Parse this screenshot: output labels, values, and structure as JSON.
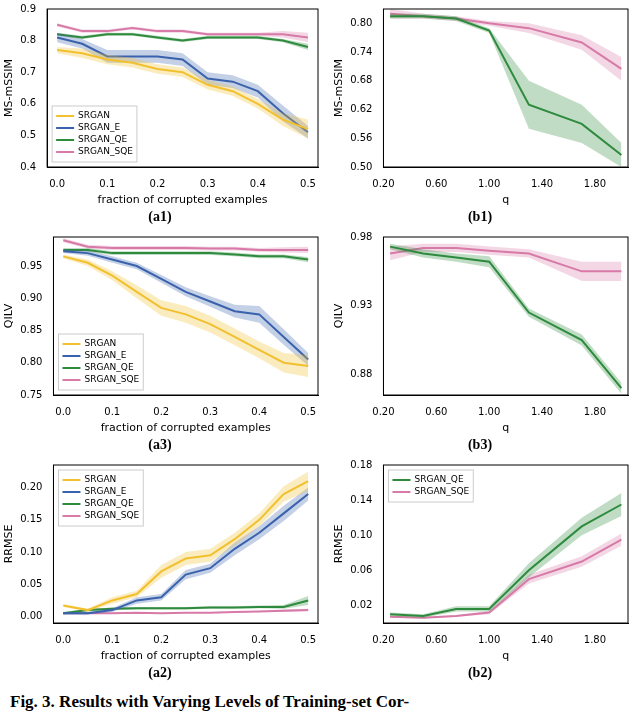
{
  "caption": "Fig. 3.  Results with Varying Levels of Training-set Cor-",
  "chart_data": [
    {
      "type": "line",
      "title": "(a1)",
      "x_label": "fraction of corrupted examples",
      "y_label": "MS-mSSIM",
      "x": [
        0,
        0.05,
        0.1,
        0.15,
        0.2,
        0.25,
        0.3,
        0.35,
        0.4,
        0.45,
        0.5
      ],
      "xlim": [
        -0.02,
        0.52
      ],
      "xticks": [
        {
          "value": 0,
          "label": "0.0"
        },
        0.1,
        0.2,
        0.3,
        0.4,
        0.5
      ],
      "ylim": [
        0.4,
        0.9
      ],
      "yticks": [
        0.4,
        0.5,
        0.6,
        0.7,
        0.8,
        0.9
      ],
      "grid": false,
      "legend": "lower left",
      "series": [
        {
          "name": "SRGAN",
          "color": "#f2c12e",
          "values": [
            0.77,
            0.76,
            0.74,
            0.73,
            0.71,
            0.7,
            0.66,
            0.64,
            0.6,
            0.55,
            0.52
          ],
          "lower": [
            0.76,
            0.745,
            0.725,
            0.715,
            0.695,
            0.685,
            0.645,
            0.625,
            0.585,
            0.53,
            0.49
          ],
          "upper": [
            0.78,
            0.775,
            0.755,
            0.745,
            0.725,
            0.715,
            0.675,
            0.655,
            0.615,
            0.57,
            0.55
          ]
        },
        {
          "name": "SRGAN_E",
          "color": "#3a62ad",
          "values": [
            0.81,
            0.79,
            0.75,
            0.75,
            0.75,
            0.74,
            0.68,
            0.67,
            0.64,
            0.57,
            0.51
          ],
          "lower": [
            0.795,
            0.775,
            0.73,
            0.73,
            0.73,
            0.72,
            0.66,
            0.65,
            0.62,
            0.545,
            0.49
          ],
          "upper": [
            0.825,
            0.805,
            0.77,
            0.77,
            0.77,
            0.76,
            0.7,
            0.69,
            0.66,
            0.595,
            0.53
          ]
        },
        {
          "name": "SRGAN_QE",
          "color": "#2e8b3e",
          "values": [
            0.82,
            0.81,
            0.82,
            0.82,
            0.81,
            0.8,
            0.81,
            0.81,
            0.81,
            0.8,
            0.78
          ],
          "lower": [
            0.815,
            0.805,
            0.815,
            0.815,
            0.805,
            0.795,
            0.805,
            0.805,
            0.805,
            0.795,
            0.77
          ],
          "upper": [
            0.825,
            0.815,
            0.825,
            0.825,
            0.815,
            0.805,
            0.815,
            0.815,
            0.815,
            0.805,
            0.79
          ]
        },
        {
          "name": "SRGAN_SQE",
          "color": "#d87aa8",
          "values": [
            0.85,
            0.83,
            0.83,
            0.84,
            0.83,
            0.83,
            0.82,
            0.82,
            0.82,
            0.82,
            0.81
          ],
          "lower": [
            0.845,
            0.825,
            0.825,
            0.835,
            0.825,
            0.825,
            0.815,
            0.815,
            0.815,
            0.81,
            0.795
          ],
          "upper": [
            0.855,
            0.835,
            0.835,
            0.845,
            0.835,
            0.835,
            0.825,
            0.825,
            0.825,
            0.83,
            0.825
          ]
        }
      ]
    },
    {
      "type": "line",
      "title": "(b1)",
      "x_label": "q",
      "y_label": "MS-mSSIM",
      "x": [
        0.25,
        0.5,
        0.75,
        1.0,
        1.3,
        1.7,
        2.0
      ],
      "xlim": [
        0.2,
        2.05
      ],
      "xticks": [
        {
          "value": 0.2,
          "label": "0.20"
        },
        {
          "value": 0.6,
          "label": "0.60"
        },
        {
          "value": 1.0,
          "label": "1.00"
        },
        {
          "value": 1.4,
          "label": "1.40"
        },
        {
          "value": 1.8,
          "label": "1.80"
        }
      ],
      "ylim": [
        0.5,
        0.83
      ],
      "yticks": [
        {
          "value": 0.5,
          "label": "0.50"
        },
        0.56,
        0.62,
        0.68,
        0.74,
        {
          "value": 0.8,
          "label": "0.80"
        }
      ],
      "grid": false,
      "series": [
        {
          "name": "SRGAN_QE",
          "color": "#2e8b3e",
          "values": [
            0.815,
            0.815,
            0.81,
            0.785,
            0.63,
            0.59,
            0.525
          ],
          "lower": [
            0.81,
            0.81,
            0.805,
            0.78,
            0.58,
            0.55,
            0.5
          ],
          "upper": [
            0.82,
            0.82,
            0.815,
            0.79,
            0.68,
            0.63,
            0.55
          ]
        },
        {
          "name": "SRGAN_SQE",
          "color": "#d87aa8",
          "values": [
            0.82,
            0.815,
            0.81,
            0.8,
            0.79,
            0.76,
            0.705
          ],
          "lower": [
            0.81,
            0.81,
            0.805,
            0.795,
            0.78,
            0.745,
            0.68
          ],
          "upper": [
            0.83,
            0.82,
            0.815,
            0.805,
            0.8,
            0.775,
            0.73
          ]
        }
      ]
    },
    {
      "type": "line",
      "title": "(a3)",
      "x_label": "fraction of corrupted examples",
      "y_label": "QILV",
      "x": [
        0,
        0.05,
        0.1,
        0.15,
        0.2,
        0.25,
        0.3,
        0.35,
        0.4,
        0.45,
        0.5
      ],
      "xlim": [
        -0.02,
        0.52
      ],
      "xticks": [
        {
          "value": 0,
          "label": "0.0"
        },
        0.1,
        0.2,
        0.3,
        0.4,
        0.5
      ],
      "ylim": [
        0.75,
        0.995
      ],
      "yticks": [
        0.75,
        {
          "value": 0.8,
          "label": "0.80"
        },
        0.85,
        {
          "value": 0.9,
          "label": "0.90"
        },
        0.95
      ],
      "grid": false,
      "legend": "lower left",
      "series": [
        {
          "name": "SRGAN",
          "color": "#f2c12e",
          "values": [
            0.965,
            0.955,
            0.935,
            0.91,
            0.885,
            0.875,
            0.86,
            0.84,
            0.82,
            0.8,
            0.795
          ],
          "lower": [
            0.962,
            0.95,
            0.928,
            0.9,
            0.873,
            0.862,
            0.847,
            0.827,
            0.807,
            0.785,
            0.778
          ],
          "upper": [
            0.968,
            0.96,
            0.942,
            0.92,
            0.897,
            0.888,
            0.873,
            0.853,
            0.833,
            0.815,
            0.812
          ]
        },
        {
          "name": "SRGAN_E",
          "color": "#3a62ad",
          "values": [
            0.973,
            0.97,
            0.96,
            0.95,
            0.93,
            0.91,
            0.895,
            0.88,
            0.875,
            0.84,
            0.805
          ],
          "lower": [
            0.97,
            0.966,
            0.955,
            0.945,
            0.924,
            0.903,
            0.887,
            0.87,
            0.862,
            0.828,
            0.795
          ],
          "upper": [
            0.976,
            0.974,
            0.965,
            0.955,
            0.936,
            0.917,
            0.903,
            0.89,
            0.888,
            0.852,
            0.815
          ]
        },
        {
          "name": "SRGAN_QE",
          "color": "#2e8b3e",
          "values": [
            0.975,
            0.975,
            0.97,
            0.97,
            0.97,
            0.97,
            0.97,
            0.968,
            0.965,
            0.965,
            0.96
          ],
          "lower": [
            0.972,
            0.972,
            0.967,
            0.967,
            0.967,
            0.967,
            0.967,
            0.965,
            0.962,
            0.962,
            0.956
          ],
          "upper": [
            0.978,
            0.978,
            0.973,
            0.973,
            0.973,
            0.973,
            0.973,
            0.971,
            0.968,
            0.968,
            0.964
          ]
        },
        {
          "name": "SRGAN_SQE",
          "color": "#d87aa8",
          "values": [
            0.99,
            0.98,
            0.978,
            0.978,
            0.978,
            0.978,
            0.977,
            0.977,
            0.975,
            0.975,
            0.975
          ],
          "lower": [
            0.987,
            0.977,
            0.975,
            0.975,
            0.975,
            0.975,
            0.974,
            0.974,
            0.972,
            0.971,
            0.97
          ],
          "upper": [
            0.993,
            0.983,
            0.981,
            0.981,
            0.981,
            0.981,
            0.98,
            0.98,
            0.978,
            0.979,
            0.98
          ]
        }
      ]
    },
    {
      "type": "line",
      "title": "(b3)",
      "x_label": "q",
      "y_label": "QILV",
      "x": [
        0.25,
        0.5,
        0.75,
        1.0,
        1.3,
        1.7,
        2.0
      ],
      "xlim": [
        0.2,
        2.05
      ],
      "xticks": [
        {
          "value": 0.2,
          "label": "0.20"
        },
        {
          "value": 0.6,
          "label": "0.60"
        },
        {
          "value": 1.0,
          "label": "1.00"
        },
        {
          "value": 1.4,
          "label": "1.40"
        },
        {
          "value": 1.8,
          "label": "1.80"
        }
      ],
      "ylim": [
        0.865,
        0.98
      ],
      "yticks": [
        0.88,
        0.93,
        0.98
      ],
      "grid": false,
      "series": [
        {
          "name": "SRGAN_QE",
          "color": "#2e8b3e",
          "values": [
            0.973,
            0.968,
            0.965,
            0.962,
            0.925,
            0.905,
            0.87
          ],
          "lower": [
            0.971,
            0.965,
            0.962,
            0.958,
            0.922,
            0.901,
            0.866
          ],
          "upper": [
            0.975,
            0.971,
            0.968,
            0.966,
            0.928,
            0.909,
            0.874
          ]
        },
        {
          "name": "SRGAN_SQE",
          "color": "#d87aa8",
          "values": [
            0.968,
            0.972,
            0.972,
            0.97,
            0.968,
            0.955,
            0.955
          ],
          "lower": [
            0.963,
            0.969,
            0.969,
            0.967,
            0.965,
            0.948,
            0.948
          ],
          "upper": [
            0.973,
            0.975,
            0.975,
            0.973,
            0.971,
            0.962,
            0.962
          ]
        }
      ]
    },
    {
      "type": "line",
      "title": "(a2)",
      "x_label": "fraction of corrupted examples",
      "y_label": "RRMSE",
      "x": [
        0,
        0.05,
        0.1,
        0.15,
        0.2,
        0.25,
        0.3,
        0.35,
        0.4,
        0.45,
        0.5
      ],
      "xlim": [
        -0.02,
        0.52
      ],
      "xticks": [
        {
          "value": 0,
          "label": "0.0"
        },
        0.1,
        0.2,
        0.3,
        0.4,
        0.5
      ],
      "ylim": [
        -0.01,
        0.235
      ],
      "yticks": [
        {
          "value": 0,
          "label": "0.00"
        },
        0.05,
        {
          "value": 0.1,
          "label": "0.10"
        },
        0.15,
        {
          "value": 0.2,
          "label": "0.20"
        }
      ],
      "grid": false,
      "legend": "upper left",
      "series": [
        {
          "name": "SRGAN",
          "color": "#f2c12e",
          "values": [
            0.017,
            0.01,
            0.025,
            0.035,
            0.07,
            0.09,
            0.095,
            0.12,
            0.15,
            0.19,
            0.21
          ],
          "lower": [
            0.015,
            0.008,
            0.02,
            0.03,
            0.06,
            0.08,
            0.085,
            0.11,
            0.14,
            0.178,
            0.195
          ],
          "upper": [
            0.019,
            0.012,
            0.03,
            0.04,
            0.08,
            0.1,
            0.105,
            0.13,
            0.16,
            0.202,
            0.225
          ]
        },
        {
          "name": "SRGAN_E",
          "color": "#3a62ad",
          "values": [
            0.005,
            0.005,
            0.01,
            0.025,
            0.03,
            0.065,
            0.075,
            0.105,
            0.13,
            0.16,
            0.19
          ],
          "lower": [
            0.003,
            0.003,
            0.007,
            0.02,
            0.025,
            0.058,
            0.068,
            0.095,
            0.12,
            0.148,
            0.18
          ],
          "upper": [
            0.007,
            0.007,
            0.013,
            0.03,
            0.035,
            0.072,
            0.082,
            0.115,
            0.14,
            0.172,
            0.2
          ]
        },
        {
          "name": "SRGAN_QE",
          "color": "#2e8b3e",
          "values": [
            0.005,
            0.01,
            0.012,
            0.013,
            0.013,
            0.013,
            0.014,
            0.014,
            0.015,
            0.015,
            0.025
          ],
          "lower": [
            0.003,
            0.008,
            0.01,
            0.011,
            0.011,
            0.011,
            0.012,
            0.012,
            0.013,
            0.012,
            0.018
          ],
          "upper": [
            0.007,
            0.012,
            0.014,
            0.015,
            0.015,
            0.015,
            0.016,
            0.016,
            0.017,
            0.018,
            0.032
          ]
        },
        {
          "name": "SRGAN_SQE",
          "color": "#d87aa8",
          "values": [
            0.005,
            0.005,
            0.005,
            0.006,
            0.005,
            0.006,
            0.006,
            0.007,
            0.008,
            0.009,
            0.01
          ],
          "lower": [
            0.004,
            0.004,
            0.004,
            0.005,
            0.004,
            0.005,
            0.005,
            0.006,
            0.007,
            0.007,
            0.008
          ],
          "upper": [
            0.006,
            0.006,
            0.006,
            0.007,
            0.006,
            0.007,
            0.007,
            0.008,
            0.009,
            0.011,
            0.012
          ]
        }
      ]
    },
    {
      "type": "line",
      "title": "(b2)",
      "x_label": "q",
      "y_label": "RRMSE",
      "x": [
        0.25,
        0.5,
        0.75,
        1.0,
        1.3,
        1.7,
        2.0
      ],
      "xlim": [
        0.2,
        2.05
      ],
      "xticks": [
        {
          "value": 0.2,
          "label": "0.20"
        },
        {
          "value": 0.6,
          "label": "0.60"
        },
        {
          "value": 1.0,
          "label": "1.00"
        },
        {
          "value": 1.4,
          "label": "1.40"
        },
        {
          "value": 1.8,
          "label": "1.80"
        }
      ],
      "ylim": [
        0,
        0.18
      ],
      "yticks": [
        0.02,
        0.06,
        {
          "value": 0.1,
          "label": "0.10"
        },
        0.14,
        0.18
      ],
      "grid": false,
      "legend": "upper left",
      "series": [
        {
          "name": "SRGAN_QE",
          "color": "#2e8b3e",
          "values": [
            0.01,
            0.008,
            0.016,
            0.016,
            0.06,
            0.11,
            0.135
          ],
          "lower": [
            0.008,
            0.006,
            0.013,
            0.013,
            0.052,
            0.1,
            0.122
          ],
          "upper": [
            0.012,
            0.01,
            0.019,
            0.019,
            0.068,
            0.12,
            0.148
          ]
        },
        {
          "name": "SRGAN_SQE",
          "color": "#d87aa8",
          "values": [
            0.007,
            0.006,
            0.008,
            0.012,
            0.05,
            0.07,
            0.095
          ],
          "lower": [
            0.006,
            0.005,
            0.007,
            0.01,
            0.045,
            0.064,
            0.088
          ],
          "upper": [
            0.008,
            0.007,
            0.009,
            0.014,
            0.055,
            0.076,
            0.102
          ]
        }
      ]
    }
  ]
}
